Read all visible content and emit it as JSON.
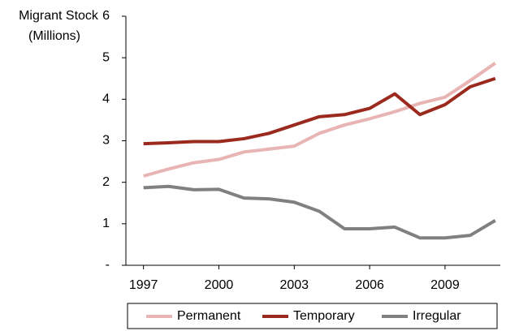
{
  "chart_data": {
    "type": "line",
    "y_label": [
      "Migrant Stock",
      "(Millions)"
    ],
    "x": [
      1997,
      1998,
      1999,
      2000,
      2001,
      2002,
      2003,
      2004,
      2005,
      2006,
      2007,
      2008,
      2009,
      2010,
      2011
    ],
    "series": [
      {
        "name": "Permanent",
        "color": "#e8b4b4",
        "values": [
          2.15,
          2.32,
          2.47,
          2.55,
          2.73,
          2.8,
          2.87,
          3.18,
          3.38,
          3.53,
          3.7,
          3.9,
          4.05,
          4.45,
          4.87
        ]
      },
      {
        "name": "Temporary",
        "color": "#9b2a1e",
        "values": [
          2.93,
          2.95,
          2.98,
          2.98,
          3.05,
          3.18,
          3.38,
          3.58,
          3.63,
          3.78,
          4.13,
          3.63,
          3.87,
          4.3,
          4.5
        ]
      },
      {
        "name": "Irregular",
        "color": "#808080",
        "values": [
          1.87,
          1.9,
          1.82,
          1.83,
          1.62,
          1.6,
          1.52,
          1.3,
          0.88,
          0.88,
          0.92,
          0.66,
          0.66,
          0.72,
          1.08
        ]
      }
    ],
    "xlim": [
      1996.3,
      2011.2
    ],
    "xticks": [
      1997,
      2000,
      2003,
      2006,
      2009
    ],
    "ylim": [
      0,
      6
    ],
    "yticks": [
      {
        "value": 0,
        "label": "-"
      },
      1,
      2,
      3,
      4,
      5,
      6
    ],
    "legend": "bottom"
  }
}
